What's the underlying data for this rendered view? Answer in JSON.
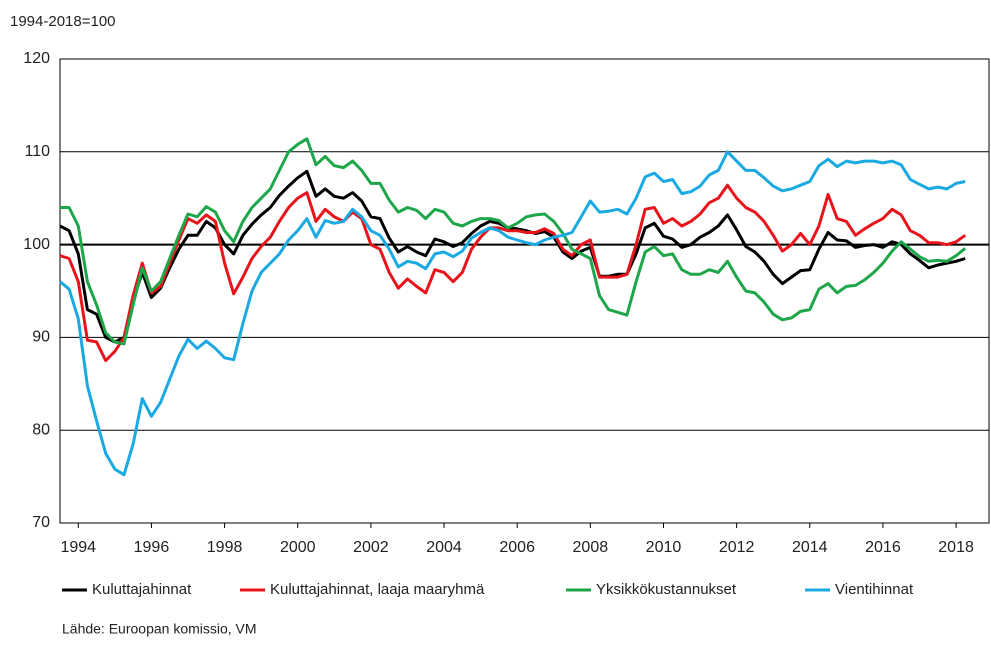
{
  "chart_data": {
    "type": "line",
    "y_label": "1994-2018=100",
    "source": "Lähde: Euroopan komissio, VM",
    "x": [
      1994,
      1994.25,
      1994.5,
      1994.75,
      1995,
      1995.25,
      1995.5,
      1995.75,
      1996,
      1996.25,
      1996.5,
      1996.75,
      1997,
      1997.25,
      1997.5,
      1997.75,
      1998,
      1998.25,
      1998.5,
      1998.75,
      1999,
      1999.25,
      1999.5,
      1999.75,
      2000,
      2000.25,
      2000.5,
      2000.75,
      2001,
      2001.25,
      2001.5,
      2001.75,
      2002,
      2002.25,
      2002.5,
      2002.75,
      2003,
      2003.25,
      2003.5,
      2003.75,
      2004,
      2004.25,
      2004.5,
      2004.75,
      2005,
      2005.25,
      2005.5,
      2005.75,
      2006,
      2006.25,
      2006.5,
      2006.75,
      2007,
      2007.25,
      2007.5,
      2007.75,
      2008,
      2008.25,
      2008.5,
      2008.75,
      2009,
      2009.25,
      2009.5,
      2009.75,
      2010,
      2010.25,
      2010.5,
      2010.75,
      2011,
      2011.25,
      2011.5,
      2011.75,
      2012,
      2012.25,
      2012.5,
      2012.75,
      2013,
      2013.25,
      2013.5,
      2013.75,
      2014,
      2014.25,
      2014.5,
      2014.75,
      2015,
      2015.25,
      2015.5,
      2015.75,
      2016,
      2016.25,
      2016.5,
      2016.75,
      2017,
      2017.25,
      2017.5,
      2017.75,
      2018,
      2018.25,
      2018.5,
      2018.75
    ],
    "series": [
      {
        "name": "Kuluttajahinnat",
        "color": "#000000",
        "values": [
          102,
          101.5,
          99,
          93,
          92.5,
          90,
          89.5,
          90,
          94,
          97,
          94.3,
          95.3,
          97.5,
          99.5,
          101,
          101,
          102.5,
          101.8,
          100,
          99,
          101,
          102.2,
          103.2,
          104,
          105.3,
          106.3,
          107.2,
          107.9,
          105.2,
          106,
          105.2,
          105,
          105.6,
          104.7,
          103,
          102.8,
          100.7,
          99.2,
          99.8,
          99.2,
          98.8,
          100.6,
          100.3,
          99.8,
          100.2,
          101.2,
          102,
          102.5,
          102.3,
          101.8,
          101.7,
          101.5,
          101.2,
          101.4,
          100.8,
          99.2,
          98.5,
          99.3,
          99.7,
          96.6,
          96.6,
          96.8,
          96.8,
          99,
          101.8,
          102.3,
          100.9,
          100.6,
          99.7,
          100,
          100.8,
          101.3,
          102,
          103.2,
          101.6,
          99.8,
          99.2,
          98.2,
          96.8,
          95.8,
          96.5,
          97.2,
          97.3,
          99.5,
          101.3,
          100.5,
          100.4,
          99.7,
          99.9,
          100,
          99.7,
          100.3,
          100,
          99,
          98.3,
          97.5,
          97.8,
          98,
          98.2,
          98.5
        ]
      },
      {
        "name": "Kuluttajahinnat, laaja maaryhmä",
        "color": "#e8141b",
        "values": [
          98.8,
          98.5,
          96,
          89.7,
          89.5,
          87.5,
          88.5,
          90,
          94.5,
          98,
          94.8,
          95.5,
          98,
          100.5,
          102.8,
          102.3,
          103.2,
          102.5,
          98,
          94.7,
          96.5,
          98.5,
          99.8,
          100.8,
          102.5,
          104,
          105,
          105.6,
          102.5,
          103.8,
          103,
          102.5,
          103.5,
          102.8,
          100,
          99.5,
          97,
          95.3,
          96.3,
          95.5,
          94.8,
          97.3,
          97,
          96,
          97,
          99.5,
          100.8,
          101.8,
          101.8,
          101.5,
          101.5,
          101.3,
          101.3,
          101.7,
          101.2,
          99.5,
          98.8,
          100,
          100.5,
          96.5,
          96.5,
          96.5,
          96.8,
          100,
          103.8,
          104,
          102.3,
          102.8,
          102,
          102.5,
          103.3,
          104.5,
          105,
          106.4,
          105,
          104,
          103.5,
          102.5,
          101,
          99.3,
          100,
          101.2,
          100,
          102,
          105.4,
          102.8,
          102.5,
          101,
          101.7,
          102.3,
          102.8,
          103.8,
          103.2,
          101.5,
          101,
          100.2,
          100.2,
          100,
          100.3,
          101
        ]
      },
      {
        "name": "Yksikkökustannukset",
        "color": "#1ea64a",
        "values": [
          104,
          104,
          102,
          96,
          93.5,
          90.5,
          89.5,
          89.3,
          93.5,
          97.5,
          95,
          96,
          98.5,
          101,
          103.3,
          103,
          104.1,
          103.5,
          101.5,
          100.3,
          102.5,
          104,
          105,
          106,
          108,
          110,
          110.8,
          111.4,
          108.6,
          109.5,
          108.5,
          108.3,
          109,
          108,
          106.6,
          106.6,
          104.8,
          103.5,
          104,
          103.7,
          102.8,
          103.8,
          103.5,
          102.3,
          102,
          102.5,
          102.8,
          102.8,
          102.6,
          101.8,
          102.3,
          103,
          103.2,
          103.3,
          102.5,
          101.2,
          99.5,
          99,
          98.5,
          94.5,
          93,
          92.7,
          92.4,
          96,
          99.2,
          99.8,
          98.8,
          99,
          97.3,
          96.8,
          96.8,
          97.3,
          97,
          98.2,
          96.5,
          95,
          94.8,
          93.8,
          92.5,
          91.9,
          92.1,
          92.8,
          93,
          95.2,
          95.8,
          94.8,
          95.5,
          95.6,
          96.2,
          97,
          98,
          99.3,
          100.3,
          99.5,
          98.7,
          98.2,
          98.3,
          98.2,
          98.8,
          99.6
        ]
      },
      {
        "name": "Vientihinnat",
        "color": "#1ba9e1",
        "values": [
          96,
          95.2,
          92,
          84.8,
          81,
          77.5,
          75.8,
          75.2,
          78.5,
          83.4,
          81.5,
          83,
          85.5,
          88,
          89.8,
          88.8,
          89.6,
          88.8,
          87.8,
          87.6,
          91.5,
          95,
          97,
          98,
          99,
          100.5,
          101.5,
          102.8,
          100.8,
          102.6,
          102.3,
          102.5,
          103.8,
          103,
          101.5,
          101,
          99.5,
          97.6,
          98.2,
          98,
          97.4,
          99,
          99.2,
          98.7,
          99.3,
          100.7,
          101.3,
          101.8,
          101.5,
          100.8,
          100.5,
          100.2,
          100,
          100.5,
          100.8,
          101,
          101.3,
          103,
          104.7,
          103.5,
          103.6,
          103.8,
          103.3,
          105,
          107.3,
          107.7,
          106.8,
          107,
          105.5,
          105.7,
          106.3,
          107.5,
          108,
          110,
          109,
          108,
          108,
          107.2,
          106.3,
          105.8,
          106,
          106.4,
          106.8,
          108.5,
          109.2,
          108.4,
          109,
          108.8,
          109,
          109,
          108.8,
          109,
          108.6,
          107,
          106.5,
          106,
          106.2,
          106,
          106.6,
          106.8
        ]
      }
    ],
    "xlim": [
      1994,
      2019.4
    ],
    "xticks": [
      {
        "value": 1994.5,
        "label": "1994"
      },
      {
        "value": 1996.5,
        "label": "1996"
      },
      {
        "value": 1998.5,
        "label": "1998"
      },
      {
        "value": 2000.5,
        "label": "2000"
      },
      {
        "value": 2002.5,
        "label": "2002"
      },
      {
        "value": 2004.5,
        "label": "2004"
      },
      {
        "value": 2006.5,
        "label": "2006"
      },
      {
        "value": 2008.5,
        "label": "2008"
      },
      {
        "value": 2010.5,
        "label": "2010"
      },
      {
        "value": 2012.5,
        "label": "2012"
      },
      {
        "value": 2014.5,
        "label": "2014"
      },
      {
        "value": 2016.5,
        "label": "2016"
      },
      {
        "value": 2018.5,
        "label": "2018"
      }
    ],
    "ylim": [
      70,
      120
    ],
    "yticks": [
      70,
      80,
      90,
      100,
      110,
      120
    ],
    "baseline": 100,
    "grid": true,
    "legend": "bottom"
  }
}
